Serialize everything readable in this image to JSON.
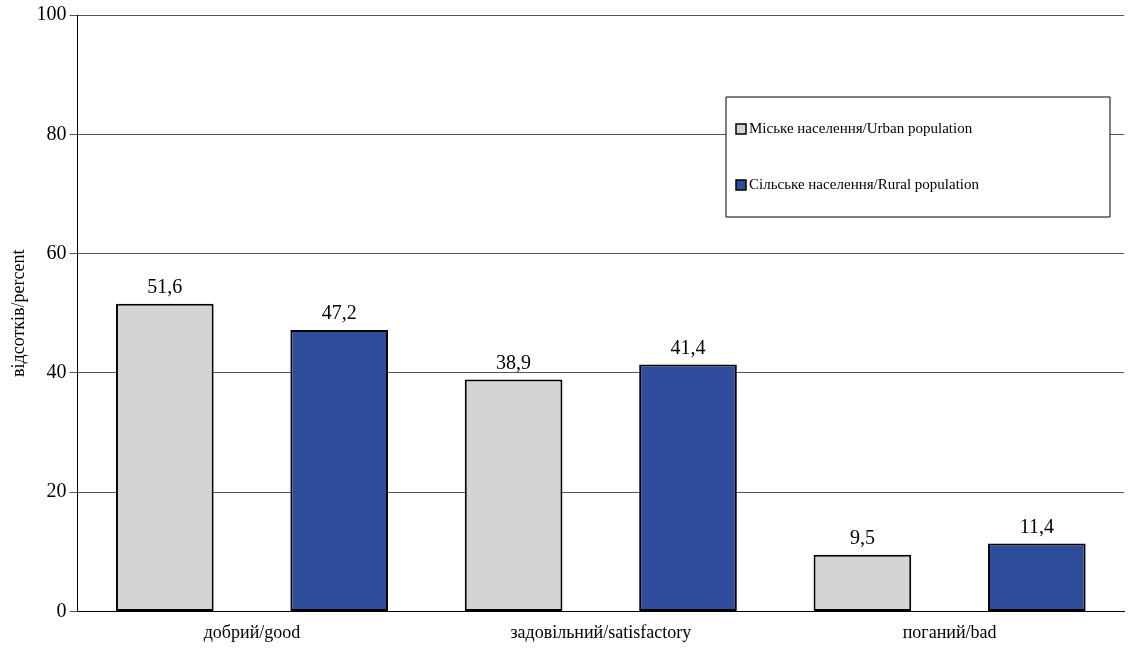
{
  "chart_data": {
    "type": "bar",
    "ylabel": "відсотків/percent",
    "categories": [
      "добрий/good",
      "задовільний/satisfactory",
      "поганий/bad"
    ],
    "series": [
      {
        "name": "Міське населення/Urban population",
        "color": "#d4d4d4",
        "values": [
          51.6,
          38.9,
          9.5
        ],
        "value_labels": [
          "51,6",
          "38,9",
          "9,5"
        ]
      },
      {
        "name": "Сільське населення/Rural population",
        "color": "#2e4e9c",
        "values": [
          47.2,
          41.4,
          11.4
        ],
        "value_labels": [
          "47,2",
          "41,4",
          "11,4"
        ]
      }
    ],
    "ylim": [
      0,
      100
    ],
    "yticks": [
      0,
      20,
      40,
      60,
      80,
      100
    ],
    "grid": "y",
    "legend": "top right"
  }
}
